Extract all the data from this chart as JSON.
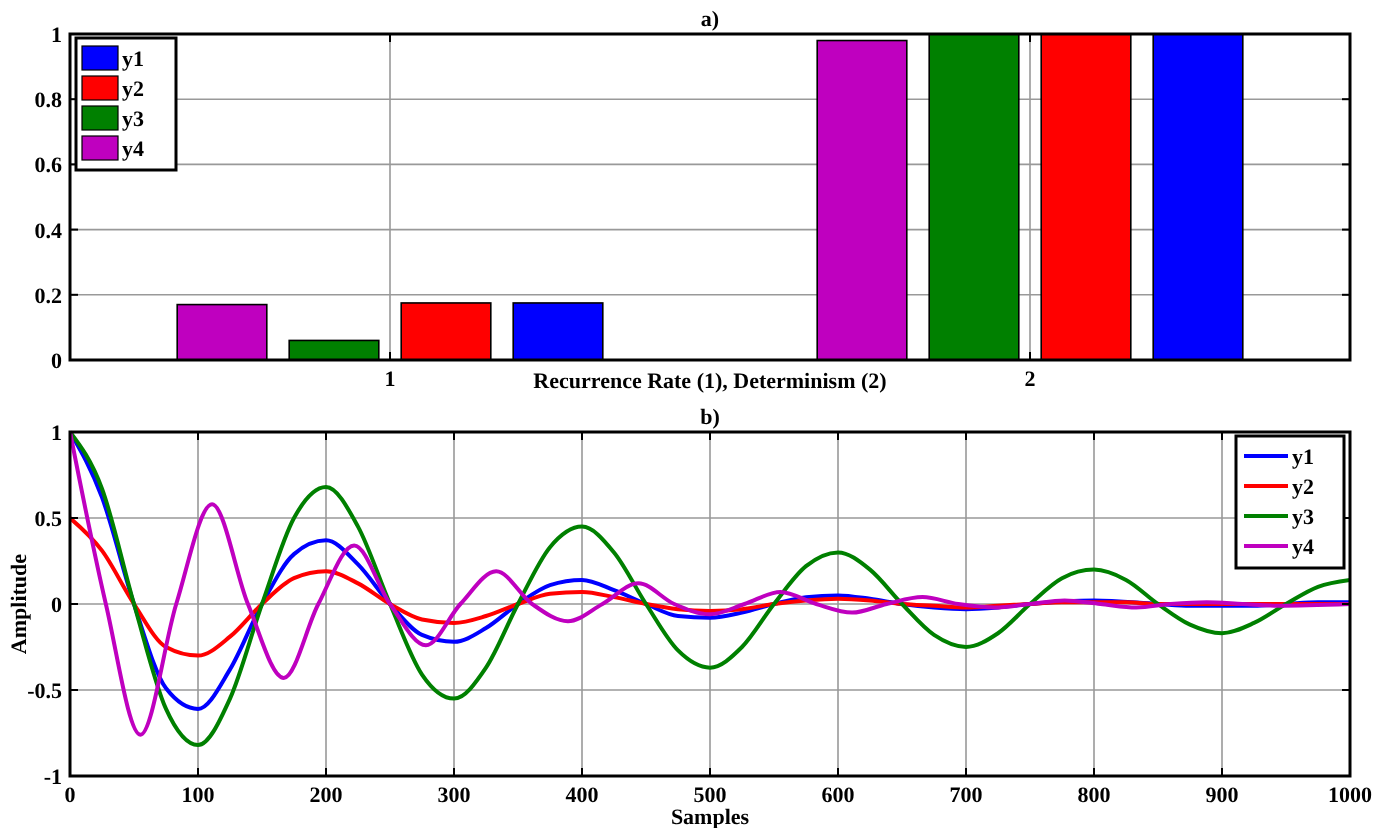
{
  "chart_data": [
    {
      "type": "bar",
      "title": "a)",
      "xlabel": "Recurrence Rate (1), Determinism (2)",
      "categories": [
        "1",
        "2"
      ],
      "series": [
        {
          "name": "y1",
          "color": "#0000ff",
          "values": [
            0.175,
            1.0
          ]
        },
        {
          "name": "y2",
          "color": "#ff0000",
          "values": [
            0.175,
            1.0
          ]
        },
        {
          "name": "y3",
          "color": "#008000",
          "values": [
            0.06,
            1.0
          ]
        },
        {
          "name": "y4",
          "color": "#bf00bf",
          "values": [
            0.17,
            0.98
          ]
        }
      ],
      "ylim": [
        0,
        1
      ],
      "yticks": [
        0,
        0.2,
        0.4,
        0.6,
        0.8,
        1
      ],
      "grid": true,
      "legend": "top left"
    },
    {
      "type": "line",
      "title": "b)",
      "xlabel": "Samples",
      "ylabel": "Amplitude",
      "x": [
        0,
        25,
        50,
        75,
        100,
        125,
        150,
        175,
        200,
        225,
        250,
        275,
        300,
        325,
        350,
        375,
        400,
        425,
        450,
        475,
        500,
        525,
        550,
        575,
        600,
        625,
        650,
        675,
        700,
        725,
        750,
        775,
        800,
        825,
        850,
        875,
        900,
        925,
        950,
        975,
        1000
      ],
      "series": [
        {
          "name": "y1",
          "color": "#0000ff",
          "values": [
            1,
            0.62,
            0,
            -0.49,
            -0.61,
            -0.38,
            0,
            0.29,
            0.37,
            0.23,
            0,
            -0.18,
            -0.22,
            -0.14,
            0,
            0.11,
            0.14,
            0.08,
            0,
            -0.07,
            -0.08,
            -0.05,
            0,
            0.04,
            0.05,
            0.03,
            0,
            -0.02,
            -0.03,
            -0.02,
            0,
            null,
            0.02,
            null,
            0,
            -0.01,
            -0.01,
            -0.01,
            0,
            0.01,
            0.01
          ]
        },
        {
          "name": "y2",
          "color": "#ff0000",
          "values": [
            0.5,
            0.31,
            0,
            -0.25,
            -0.3,
            -0.19,
            0,
            0.15,
            0.19,
            0.12,
            0,
            -0.09,
            -0.11,
            -0.07,
            0,
            0.06,
            0.07,
            0.04,
            0,
            -0.03,
            -0.04,
            -0.03,
            0,
            0.02,
            0.03,
            0.02,
            0,
            -0.01,
            -0.02,
            -0.01,
            0,
            0.01,
            0.01,
            0.01,
            0,
            0,
            0,
            0,
            0,
            0,
            0
          ]
        },
        {
          "name": "y3",
          "color": "#008000",
          "values": [
            1,
            0.67,
            0,
            -0.61,
            -0.82,
            -0.55,
            0,
            0.5,
            0.68,
            0.45,
            0,
            -0.41,
            -0.55,
            -0.37,
            0,
            0.33,
            0.45,
            0.3,
            0,
            -0.27,
            -0.37,
            -0.25,
            0,
            0.22,
            0.3,
            0.2,
            0,
            -0.18,
            -0.25,
            -0.17,
            0,
            0.15,
            0.2,
            0.14,
            0,
            -0.12,
            -0.17,
            -0.11,
            0,
            0.1,
            0.14
          ]
        },
        {
          "name": "y4",
          "color": "#bf00bf",
          "x": [
            0,
            28,
            55,
            83,
            111,
            139,
            167,
            194,
            222,
            250,
            278,
            305,
            333,
            361,
            389,
            416,
            444,
            472,
            500,
            527,
            555,
            583,
            611,
            638,
            666,
            694,
            722,
            750,
            777,
            805,
            833,
            860,
            888,
            916,
            944,
            1000
          ],
          "values": [
            1,
            0,
            -0.76,
            0,
            0.58,
            0,
            -0.43,
            0,
            0.34,
            0,
            -0.24,
            0,
            0.19,
            0,
            -0.1,
            0,
            0.12,
            0,
            -0.06,
            0,
            0.07,
            0,
            -0.05,
            0,
            0.04,
            0,
            -0.02,
            0,
            0.02,
            0,
            -0.02,
            0,
            0.01,
            0,
            -0.01,
            0
          ]
        }
      ],
      "xlim": [
        0,
        1000
      ],
      "xticks": [
        0,
        100,
        200,
        300,
        400,
        500,
        600,
        700,
        800,
        900,
        1000
      ],
      "ylim": [
        -1,
        1
      ],
      "yticks": [
        -1,
        -0.5,
        0,
        0.5,
        1
      ],
      "grid": true,
      "legend": "top right",
      "line_style": "solid",
      "marker": "none"
    }
  ]
}
